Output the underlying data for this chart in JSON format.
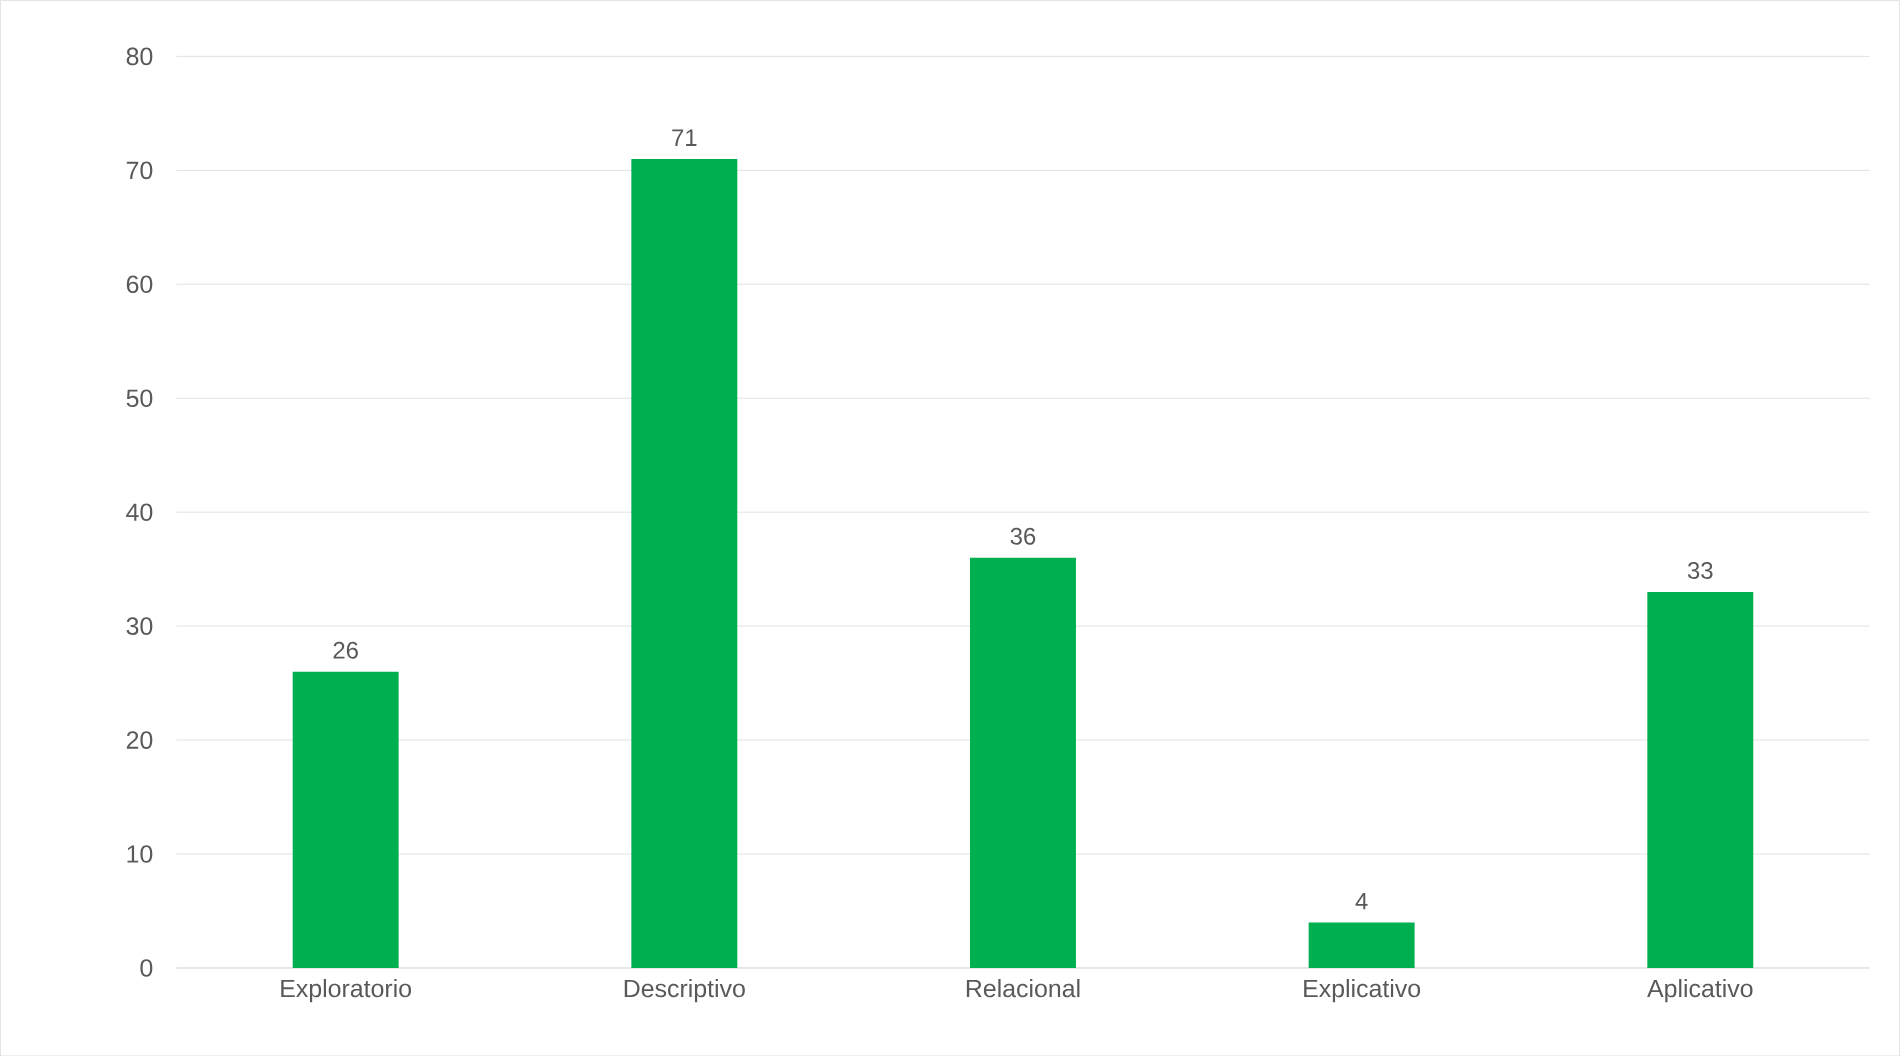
{
  "chart_data": {
    "type": "bar",
    "categories": [
      "Exploratorio",
      "Descriptivo",
      "Relacional",
      "Explicativo",
      "Aplicativo"
    ],
    "values": [
      26,
      71,
      36,
      4,
      33
    ],
    "color": "#00b050",
    "ylim": [
      0,
      80
    ],
    "yticks": [
      0,
      10,
      20,
      30,
      40,
      50,
      60,
      70,
      80
    ],
    "grid": "y",
    "data_labels": true
  }
}
